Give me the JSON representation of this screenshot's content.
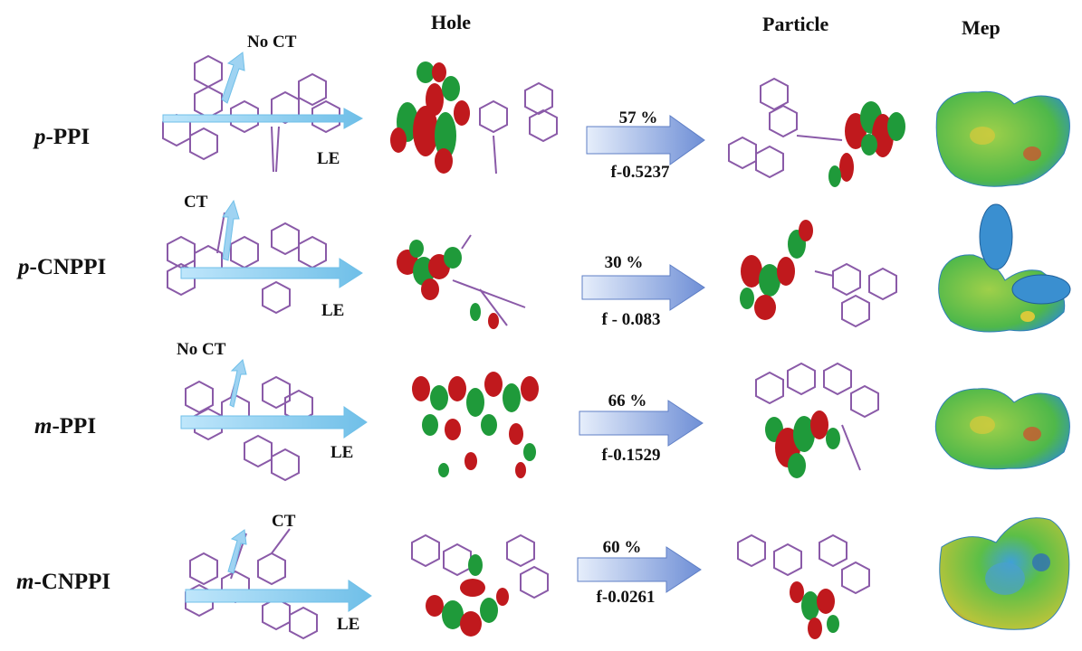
{
  "headers": {
    "hole": "Hole",
    "particle": "Particle",
    "mep": "Mep"
  },
  "rows": [
    {
      "prefix": "p",
      "name": "-PPI",
      "transfer_label": "No CT",
      "le_label": "LE",
      "percent": "57 %",
      "osc": "f-0.5237"
    },
    {
      "prefix": "p",
      "name": "-CNPPI",
      "transfer_label": "CT",
      "le_label": "LE",
      "percent": "30 %",
      "osc": "f - 0.083"
    },
    {
      "prefix": "m",
      "name": "-PPI",
      "transfer_label": "No CT",
      "le_label": "LE",
      "percent": "66 %",
      "osc": "f-0.1529"
    },
    {
      "prefix": "m",
      "name": "-CNPPI",
      "transfer_label": "CT",
      "le_label": "LE",
      "percent": "60 %",
      "osc": "f-0.0261"
    }
  ],
  "colors": {
    "lobe_red": "#c0191d",
    "lobe_green": "#1f9a3a",
    "bond_purple": "#8a5aa8",
    "arrow_blue": "#7b97d6",
    "le_arrow": "#9fd3f2",
    "mep_green": "#4fb84a",
    "mep_blue": "#3a8fd0",
    "mep_yellow": "#d9c93a"
  }
}
